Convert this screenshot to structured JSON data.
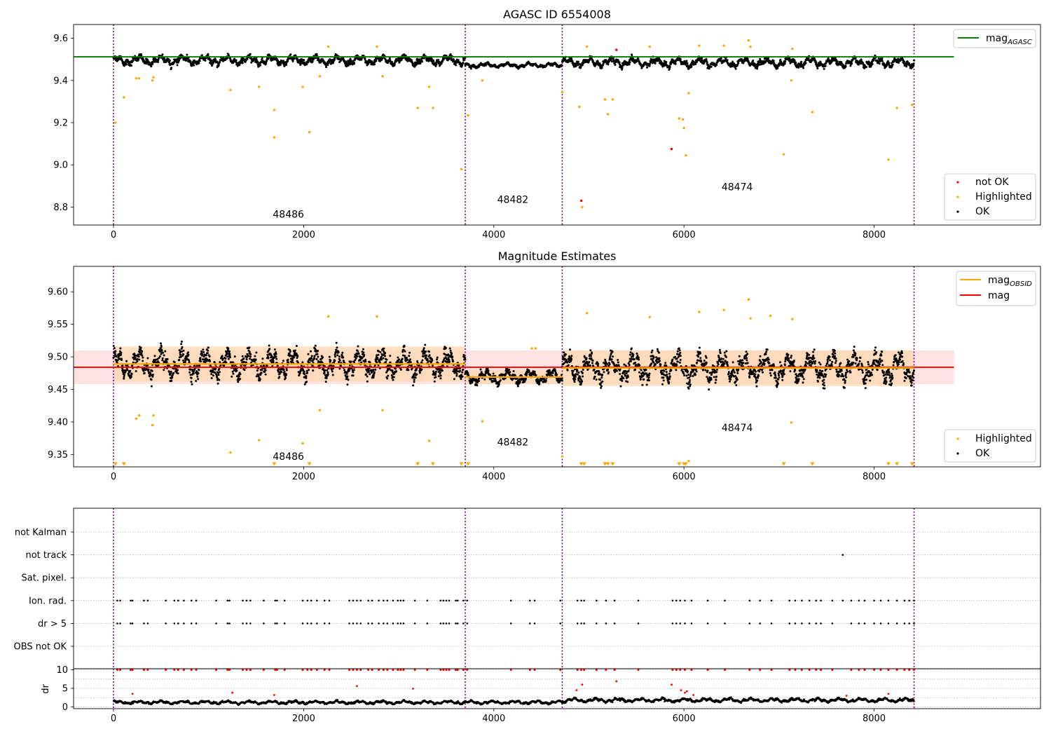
{
  "colors": {
    "ok": "#000000",
    "not_ok": "#ff0000",
    "highlighted": "#ffa500",
    "mag_agasc_line": "#008000",
    "mag_line": "#ff0000",
    "mag_obsid_line": "#ffa500",
    "obs_boundary": "#800080",
    "band_inner": "#ffd8b0",
    "band_outer": "#ffe0e0"
  },
  "chart_data": [
    {
      "type": "scatter",
      "title": "AGASC ID 6554008",
      "xlim": [
        -420,
        9750
      ],
      "ylim": [
        8.715,
        9.665
      ],
      "x_ticks": [
        0,
        2000,
        4000,
        6000,
        8000
      ],
      "x_tick_labels": [
        "0",
        "2000",
        "4000",
        "6000",
        "8000"
      ],
      "y_ticks": [
        8.8,
        9.0,
        9.2,
        9.4,
        9.6
      ],
      "y_tick_labels": [
        "8.8",
        "9.0",
        "9.2",
        "9.4",
        "9.6"
      ],
      "obs_boundaries": [
        0,
        3700,
        4720,
        8420
      ],
      "obs_labels": [
        {
          "text": "48486",
          "x": 1840,
          "y": 8.75
        },
        {
          "text": "48482",
          "x": 4200,
          "y": 8.82
        },
        {
          "text": "48474",
          "x": 6560,
          "y": 8.88
        }
      ],
      "lines": [
        {
          "name": "mag_AGASC",
          "y": 9.512,
          "x_range": [
            -420,
            8840
          ],
          "color": "#008000"
        }
      ],
      "ok_trend": {
        "segments": [
          {
            "x_range": [
              0,
              3700
            ],
            "mean": 9.495,
            "amplitude": 0.025
          },
          {
            "x_range": [
              3700,
              4720
            ],
            "mean": 9.472,
            "amplitude": 0.012
          },
          {
            "x_range": [
              4720,
              8420
            ],
            "mean": 9.485,
            "amplitude": 0.025
          }
        ]
      },
      "series": [
        {
          "name": "not OK",
          "points": [
            [
              5290,
              9.545
            ],
            [
              5870,
              9.075
            ],
            [
              4920,
              8.83
            ]
          ]
        },
        {
          "name": "Highlighted",
          "points": [
            [
              20,
              9.2
            ],
            [
              110,
              9.32
            ],
            [
              240,
              9.41
            ],
            [
              270,
              9.41
            ],
            [
              410,
              9.4
            ],
            [
              420,
              9.415
            ],
            [
              1230,
              9.355
            ],
            [
              1530,
              9.37
            ],
            [
              1690,
              9.26
            ],
            [
              1690,
              9.13
            ],
            [
              1990,
              9.37
            ],
            [
              2060,
              9.155
            ],
            [
              2170,
              9.42
            ],
            [
              2260,
              9.56
            ],
            [
              2770,
              9.56
            ],
            [
              2830,
              9.42
            ],
            [
              3200,
              9.27
            ],
            [
              3320,
              9.37
            ],
            [
              3360,
              9.27
            ],
            [
              3660,
              8.98
            ],
            [
              3730,
              9.235
            ],
            [
              3880,
              9.4
            ],
            [
              4930,
              8.8
            ],
            [
              4900,
              9.275
            ],
            [
              4980,
              9.56
            ],
            [
              5170,
              9.31
            ],
            [
              5200,
              9.24
            ],
            [
              5250,
              9.31
            ],
            [
              5640,
              9.56
            ],
            [
              5950,
              9.22
            ],
            [
              5990,
              9.215
            ],
            [
              6000,
              9.175
            ],
            [
              6020,
              9.045
            ],
            [
              6050,
              9.34
            ],
            [
              6160,
              9.565
            ],
            [
              6420,
              9.565
            ],
            [
              6680,
              9.59
            ],
            [
              6700,
              9.56
            ],
            [
              7050,
              9.05
            ],
            [
              7130,
              9.4
            ],
            [
              7140,
              9.55
            ],
            [
              7350,
              9.25
            ],
            [
              8150,
              9.025
            ],
            [
              8240,
              9.27
            ],
            [
              8400,
              9.285
            ],
            [
              4720,
              9.345
            ]
          ]
        }
      ],
      "legend": {
        "location": "top-right",
        "entries": [
          {
            "label": "mag",
            "subscript": "AGASC"
          }
        ]
      },
      "legend2": {
        "location": "bottom-right",
        "entries": [
          "not OK",
          "Highlighted",
          "OK"
        ]
      }
    },
    {
      "type": "scatter",
      "title": "Magnitude Estimates",
      "xlim": [
        -420,
        9750
      ],
      "ylim": [
        9.331,
        9.639
      ],
      "x_ticks": [
        0,
        2000,
        4000,
        6000,
        8000
      ],
      "x_tick_labels": [
        "0",
        "2000",
        "4000",
        "6000",
        "8000"
      ],
      "y_ticks": [
        9.35,
        9.4,
        9.45,
        9.5,
        9.55,
        9.6
      ],
      "y_tick_labels": [
        "9.35",
        "9.40",
        "9.45",
        "9.50",
        "9.55",
        "9.60"
      ],
      "obs_boundaries": [
        0,
        3700,
        4720,
        8420
      ],
      "obs_labels": [
        {
          "text": "48486",
          "x": 1840,
          "y": 9.342
        },
        {
          "text": "48482",
          "x": 4200,
          "y": 9.364
        },
        {
          "text": "48474",
          "x": 6560,
          "y": 9.386
        }
      ],
      "bands": [
        {
          "y_range": [
            9.458,
            9.51
          ],
          "x_range": [
            -420,
            8840
          ],
          "color": "#ffe0e0"
        },
        {
          "y_range": [
            9.462,
            9.516
          ],
          "x_range": [
            0,
            3700
          ],
          "color": "#ffd8b0"
        },
        {
          "y_range": [
            9.458,
            9.48
          ],
          "x_range": [
            3700,
            4720
          ],
          "color": "#ffd8b0"
        },
        {
          "y_range": [
            9.455,
            9.51
          ],
          "x_range": [
            4720,
            8420
          ],
          "color": "#ffd8b0"
        }
      ],
      "lines": [
        {
          "name": "mag",
          "y": 9.484,
          "x_range": [
            -420,
            8840
          ],
          "color": "#ff0000"
        },
        {
          "name": "mag_OBSID",
          "segments": [
            [
              0,
              3700,
              9.489
            ],
            [
              3700,
              4720,
              9.469
            ],
            [
              4720,
              8420,
              9.483
            ]
          ],
          "color": "#ffa500"
        }
      ],
      "ok_trend": {
        "segments": [
          {
            "x_range": [
              0,
              3700
            ],
            "mean": 9.489,
            "amplitude": 0.025
          },
          {
            "x_range": [
              3700,
              4720
            ],
            "mean": 9.469,
            "amplitude": 0.012
          },
          {
            "x_range": [
              4720,
              8420
            ],
            "mean": 9.483,
            "amplitude": 0.025
          }
        ]
      },
      "series": [
        {
          "name": "Highlighted",
          "points": [
            [
              240,
              9.405
            ],
            [
              270,
              9.41
            ],
            [
              410,
              9.395
            ],
            [
              420,
              9.41
            ],
            [
              1230,
              9.353
            ],
            [
              1530,
              9.372
            ],
            [
              1990,
              9.367
            ],
            [
              2170,
              9.418
            ],
            [
              2260,
              9.562
            ],
            [
              2770,
              9.562
            ],
            [
              2830,
              9.418
            ],
            [
              3320,
              9.371
            ],
            [
              3880,
              9.401
            ],
            [
              4980,
              9.567
            ],
            [
              5640,
              9.561
            ],
            [
              6050,
              9.34
            ],
            [
              6160,
              9.569
            ],
            [
              6420,
              9.572
            ],
            [
              6680,
              9.588
            ],
            [
              6700,
              9.559
            ],
            [
              6910,
              9.563
            ],
            [
              7130,
              9.399
            ],
            [
              7140,
              9.558
            ],
            [
              4400,
              9.513
            ],
            [
              4440,
              9.513
            ],
            [
              4720,
              9.347
            ]
          ]
        }
      ],
      "low_markers": [
        20,
        110,
        1690,
        2060,
        3200,
        3360,
        3660,
        3730,
        4920,
        4950,
        5170,
        5200,
        5250,
        5950,
        6000,
        6020,
        7050,
        7350,
        8150,
        8240,
        8400
      ],
      "legend": {
        "location": "top-right",
        "entries": [
          {
            "label": "mag",
            "subscript": "OBSID"
          },
          {
            "label": "mag",
            "subscript": ""
          }
        ]
      },
      "legend2": {
        "location": "bottom-right",
        "entries": [
          "Highlighted",
          "OK"
        ]
      }
    },
    {
      "type": "scatter",
      "xlim": [
        -420,
        9750
      ],
      "categories": [
        "not Kalman",
        "not track",
        "Sat. pixel.",
        "Ion. rad.",
        "dr > 5",
        "OBS not OK"
      ],
      "obs_boundaries": [
        0,
        3700,
        4720,
        8420
      ],
      "flag_points": {
        "not track": [
          7670
        ],
        "Ion. rad.": [
          40,
          70,
          180,
          200,
          320,
          360,
          550,
          640,
          680,
          740,
          820,
          870,
          1080,
          1200,
          1220,
          1360,
          1400,
          1440,
          1580,
          1700,
          1720,
          1800,
          1990,
          2040,
          2080,
          2140,
          2220,
          2270,
          2480,
          2520,
          2560,
          2600,
          2680,
          2720,
          2790,
          2840,
          2880,
          2940,
          2990,
          3020,
          3050,
          3170,
          3300,
          3440,
          3470,
          3500,
          3530,
          3600,
          3620,
          3680,
          3720,
          4180,
          4380,
          4430,
          4700,
          4880,
          4920,
          4950,
          5080,
          5180,
          5270,
          5520,
          5880,
          5920,
          5960,
          6010,
          6080,
          6250,
          6430,
          6690,
          6800,
          6920,
          7110,
          7170,
          7240,
          7320,
          7390,
          7440,
          7560,
          7670,
          7760,
          7840,
          7900,
          8000,
          8070,
          8150,
          8240,
          8320,
          8370,
          8420
        ],
        "dr > 5": [
          40,
          70,
          180,
          200,
          320,
          360,
          550,
          640,
          680,
          740,
          820,
          870,
          1080,
          1200,
          1220,
          1360,
          1400,
          1440,
          1580,
          1700,
          1720,
          1800,
          1990,
          2040,
          2080,
          2140,
          2220,
          2270,
          2480,
          2520,
          2560,
          2600,
          2680,
          2720,
          2790,
          2840,
          2880,
          2940,
          2990,
          3020,
          3050,
          3170,
          3300,
          3440,
          3470,
          3500,
          3530,
          3600,
          3620,
          3680,
          3720,
          4180,
          4380,
          4430,
          4700,
          4880,
          4920,
          4950,
          5080,
          5180,
          5270,
          5520,
          5880,
          5920,
          5960,
          6010,
          6080,
          6250,
          6430,
          6690,
          6800,
          6920,
          7110,
          7170,
          7240,
          7320,
          7390,
          7440,
          7560,
          7760,
          7840,
          7900,
          8000,
          8070,
          8150,
          8240,
          8320,
          8370,
          8420
        ]
      }
    },
    {
      "type": "scatter",
      "ylabel": "dr",
      "xlim": [
        -420,
        9750
      ],
      "ylim": [
        -0.5,
        10.3
      ],
      "x_ticks": [
        0,
        2000,
        4000,
        6000,
        8000
      ],
      "x_tick_labels": [
        "0",
        "2000",
        "4000",
        "6000",
        "8000"
      ],
      "y_ticks": [
        0,
        5,
        10
      ],
      "y_tick_labels": [
        "0",
        "5",
        "10"
      ],
      "obs_boundaries": [
        0,
        3700,
        4720,
        8420
      ],
      "ok_trend": {
        "segments": [
          {
            "x_range": [
              0,
              4720
            ],
            "mean": 1.2,
            "amplitude": 0.5
          },
          {
            "x_range": [
              4720,
              8420
            ],
            "mean": 1.8,
            "amplitude": 0.6
          }
        ]
      },
      "red_capped_x": [
        40,
        70,
        180,
        200,
        320,
        360,
        550,
        640,
        680,
        740,
        820,
        870,
        1080,
        1200,
        1220,
        1360,
        1400,
        1440,
        1580,
        1700,
        1720,
        1800,
        1990,
        2040,
        2080,
        2140,
        2220,
        2270,
        2480,
        2520,
        2560,
        2600,
        2680,
        2720,
        2790,
        2840,
        2880,
        2940,
        2990,
        3020,
        3050,
        3170,
        3300,
        3440,
        3470,
        3500,
        3530,
        3600,
        3620,
        3680,
        3720,
        4180,
        4380,
        4430,
        4700,
        4880,
        4920,
        4950,
        5080,
        5180,
        5270,
        5520,
        5880,
        5920,
        5960,
        6010,
        6080,
        6250,
        6430,
        6690,
        6800,
        6920,
        7110,
        7170,
        7240,
        7320,
        7390,
        7440,
        7560,
        7760,
        7840,
        7900,
        8000,
        8070,
        8150,
        8240,
        8320,
        8370,
        8420
      ],
      "red_points": [
        [
          200,
          3.5
        ],
        [
          1250,
          3.8
        ],
        [
          1690,
          3.2
        ],
        [
          2560,
          5.6
        ],
        [
          3150,
          4.9
        ],
        [
          4870,
          4.5
        ],
        [
          4930,
          6.0
        ],
        [
          5290,
          6.9
        ],
        [
          5870,
          6.0
        ],
        [
          5970,
          4.5
        ],
        [
          6010,
          3.8
        ],
        [
          6030,
          4.2
        ],
        [
          6100,
          3.2
        ],
        [
          7710,
          3.0
        ],
        [
          8150,
          3.5
        ]
      ]
    }
  ]
}
